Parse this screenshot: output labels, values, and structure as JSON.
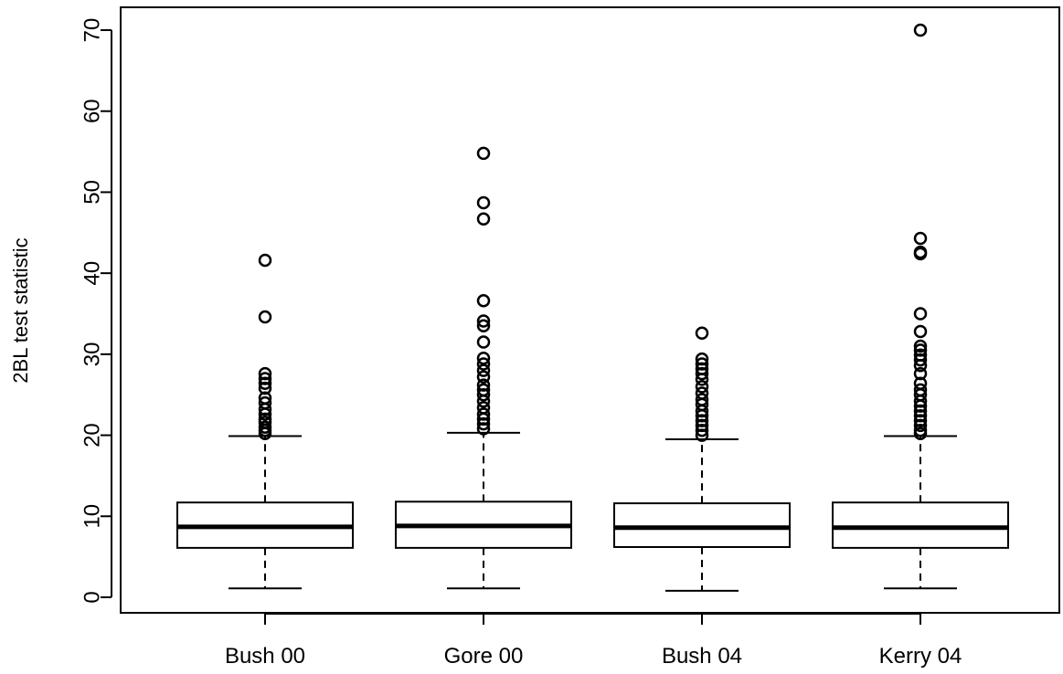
{
  "chart_data": {
    "type": "boxplot",
    "title": "",
    "xlabel": "",
    "ylabel": "2BL test statistic",
    "ylim": [
      -2,
      72
    ],
    "yticks": [
      0,
      10,
      20,
      30,
      40,
      50,
      60,
      70
    ],
    "grid": false,
    "legend": "none",
    "colors": {
      "box_fill": "#ffffff",
      "stroke": "#000000"
    },
    "boxes": [
      {
        "label": "Bush 00",
        "whisker_low": 1.1,
        "q1": 6.1,
        "median": 8.7,
        "q3": 11.7,
        "whisker_high": 19.9,
        "outliers": [
          41.6,
          34.6,
          27.6,
          27.0,
          26.4,
          25.8,
          24.6,
          24.0,
          23.2,
          22.6,
          22.0,
          21.6,
          21.0,
          20.6,
          20.2
        ]
      },
      {
        "label": "Gore 00",
        "whisker_low": 1.1,
        "q1": 6.1,
        "median": 8.8,
        "q3": 11.8,
        "whisker_high": 20.3,
        "outliers": [
          54.8,
          48.7,
          46.7,
          36.6,
          34.1,
          33.5,
          31.5,
          29.5,
          28.8,
          28.0,
          27.2,
          26.2,
          25.6,
          25.0,
          24.2,
          23.4,
          22.6,
          22.0,
          21.4,
          20.8
        ]
      },
      {
        "label": "Bush 04",
        "whisker_low": 0.8,
        "q1": 6.2,
        "median": 8.6,
        "q3": 11.6,
        "whisker_high": 19.5,
        "outliers": [
          32.6,
          29.4,
          28.8,
          28.2,
          27.6,
          26.9,
          26.0,
          25.2,
          24.4,
          23.8,
          23.0,
          22.4,
          21.8,
          21.2,
          20.6,
          20.0
        ]
      },
      {
        "label": "Kerry 04",
        "whisker_low": 1.1,
        "q1": 6.1,
        "median": 8.6,
        "q3": 11.7,
        "whisker_high": 19.9,
        "outliers": [
          70.0,
          44.3,
          42.6,
          42.4,
          35.0,
          32.8,
          31.0,
          30.5,
          29.9,
          29.3,
          28.6,
          27.6,
          26.4,
          25.6,
          25.0,
          24.2,
          23.6,
          23.0,
          22.4,
          21.8,
          21.2,
          20.6,
          20.2
        ]
      }
    ]
  }
}
